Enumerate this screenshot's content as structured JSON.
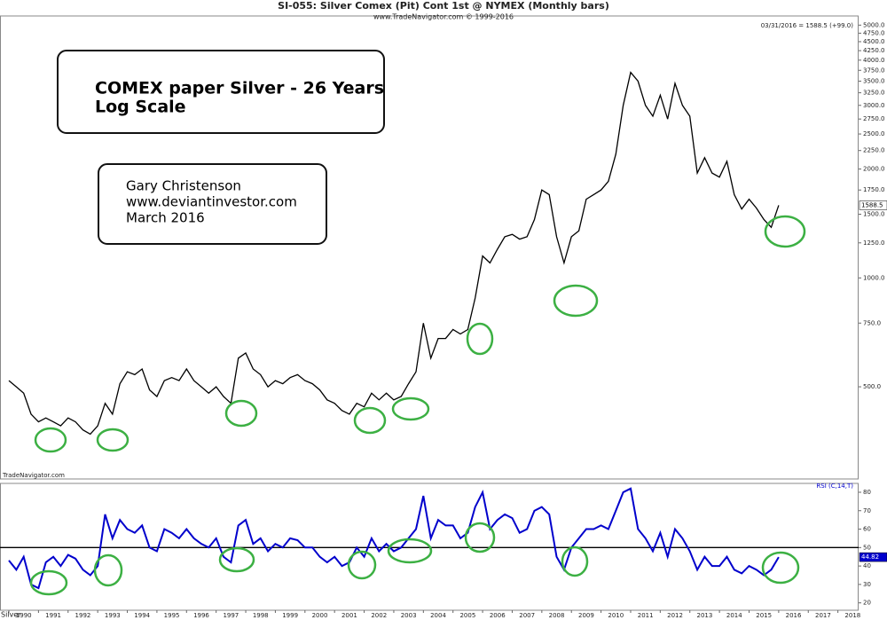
{
  "chart_data": [
    {
      "type": "line",
      "title": "SI-055:  Silver Comex (Pit) Cont 1st @ NYMEX  (Monthly bars)",
      "subtitle": "www.TradeNavigator.com © 1999-2016",
      "last_label": "03/31/2016 = 1588.5 (+99.0)",
      "source": "TradeNavigator.com",
      "annotations": [
        "COMEX paper Silver - 26 Years",
        "Log Scale",
        "Gary Christenson",
        "www.deviantinvestor.com",
        "March 2016"
      ],
      "log_scale": true,
      "x": [
        1990,
        1990.25,
        1990.5,
        1990.75,
        1991,
        1991.25,
        1991.5,
        1991.75,
        1992,
        1992.25,
        1992.5,
        1992.75,
        1993,
        1993.25,
        1993.5,
        1993.75,
        1994,
        1994.25,
        1994.5,
        1994.75,
        1995,
        1995.25,
        1995.5,
        1995.75,
        1996,
        1996.25,
        1996.5,
        1996.75,
        1997,
        1997.25,
        1997.5,
        1997.75,
        1998,
        1998.25,
        1998.5,
        1998.75,
        1999,
        1999.25,
        1999.5,
        1999.75,
        2000,
        2000.25,
        2000.5,
        2000.75,
        2001,
        2001.25,
        2001.5,
        2001.75,
        2002,
        2002.25,
        2002.5,
        2002.75,
        2003,
        2003.25,
        2003.5,
        2003.75,
        2004,
        2004.25,
        2004.5,
        2004.75,
        2005,
        2005.25,
        2005.5,
        2005.75,
        2006,
        2006.25,
        2006.5,
        2006.75,
        2007,
        2007.25,
        2007.5,
        2007.75,
        2008,
        2008.25,
        2008.5,
        2008.75,
        2009,
        2009.25,
        2009.5,
        2009.75,
        2010,
        2010.25,
        2010.5,
        2010.75,
        2011,
        2011.25,
        2011.5,
        2011.75,
        2012,
        2012.25,
        2012.5,
        2012.75,
        2013,
        2013.25,
        2013.5,
        2013.75,
        2014,
        2014.25,
        2014.5,
        2014.75,
        2015,
        2015.25,
        2015.5,
        2015.75,
        2016
      ],
      "series": [
        {
          "name": "Silver",
          "color": "#000000",
          "values": [
            520,
            500,
            480,
            420,
            400,
            410,
            400,
            390,
            410,
            400,
            380,
            370,
            390,
            450,
            420,
            510,
            550,
            540,
            560,
            490,
            470,
            520,
            530,
            520,
            560,
            520,
            500,
            480,
            500,
            470,
            450,
            600,
            620,
            560,
            540,
            500,
            520,
            510,
            530,
            540,
            520,
            510,
            490,
            460,
            450,
            430,
            420,
            450,
            440,
            480,
            460,
            480,
            460,
            470,
            510,
            550,
            750,
            600,
            680,
            680,
            720,
            700,
            720,
            880,
            1150,
            1100,
            1200,
            1300,
            1320,
            1280,
            1300,
            1450,
            1750,
            1700,
            1300,
            1100,
            1300,
            1350,
            1650,
            1700,
            1750,
            1850,
            2200,
            3000,
            3700,
            3500,
            3000,
            2800,
            3200,
            2750,
            3450,
            3000,
            2800,
            1950,
            2150,
            1950,
            1900,
            2100,
            1700,
            1550,
            1650,
            1560,
            1450,
            1380,
            1588.5
          ]
        }
      ],
      "xlim": [
        1989.7,
        2018.7
      ],
      "ylim": [
        278,
        5300
      ],
      "yticks": [
        {
          "value": 500,
          "label": "500.0"
        },
        {
          "value": 750,
          "label": "750.0"
        },
        {
          "value": 1000,
          "label": "1000.0"
        },
        {
          "value": 1250,
          "label": "1250.0"
        },
        {
          "value": 1500,
          "label": "1500.0"
        },
        {
          "value": 1750,
          "label": "1750.0"
        },
        {
          "value": 2000,
          "label": "2000.0"
        },
        {
          "value": 2250,
          "label": "2250.0"
        },
        {
          "value": 2500,
          "label": "2500.0"
        },
        {
          "value": 2750,
          "label": "2750.0"
        },
        {
          "value": 3000,
          "label": "3000.0"
        },
        {
          "value": 3250,
          "label": "3250.0"
        },
        {
          "value": 3500,
          "label": "3500.0"
        },
        {
          "value": 3750,
          "label": "3750.0"
        },
        {
          "value": 4000,
          "label": "4000.0"
        },
        {
          "value": 4250,
          "label": "4250.0"
        },
        {
          "value": 4500,
          "label": "4500.0"
        },
        {
          "value": 4750,
          "label": "4750.0"
        },
        {
          "value": 5000,
          "label": "5000.0"
        }
      ]
    },
    {
      "type": "line",
      "title": "RSI (C,14,T)",
      "x": [
        1990,
        1990.25,
        1990.5,
        1990.75,
        1991,
        1991.25,
        1991.5,
        1991.75,
        1992,
        1992.25,
        1992.5,
        1992.75,
        1993,
        1993.25,
        1993.5,
        1993.75,
        1994,
        1994.25,
        1994.5,
        1994.75,
        1995,
        1995.25,
        1995.5,
        1995.75,
        1996,
        1996.25,
        1996.5,
        1996.75,
        1997,
        1997.25,
        1997.5,
        1997.75,
        1998,
        1998.25,
        1998.5,
        1998.75,
        1999,
        1999.25,
        1999.5,
        1999.75,
        2000,
        2000.25,
        2000.5,
        2000.75,
        2001,
        2001.25,
        2001.5,
        2001.75,
        2002,
        2002.25,
        2002.5,
        2002.75,
        2003,
        2003.25,
        2003.5,
        2003.75,
        2004,
        2004.25,
        2004.5,
        2004.75,
        2005,
        2005.25,
        2005.5,
        2005.75,
        2006,
        2006.25,
        2006.5,
        2006.75,
        2007,
        2007.25,
        2007.5,
        2007.75,
        2008,
        2008.25,
        2008.5,
        2008.75,
        2009,
        2009.25,
        2009.5,
        2009.75,
        2010,
        2010.25,
        2010.5,
        2010.75,
        2011,
        2011.25,
        2011.5,
        2011.75,
        2012,
        2012.25,
        2012.5,
        2012.75,
        2013,
        2013.25,
        2013.5,
        2013.75,
        2014,
        2014.25,
        2014.5,
        2014.75,
        2015,
        2015.25,
        2015.5,
        2015.75,
        2016
      ],
      "color": "#0000cc",
      "values": [
        43,
        38,
        45,
        30,
        28,
        42,
        45,
        40,
        46,
        44,
        38,
        35,
        40,
        68,
        55,
        65,
        60,
        58,
        62,
        50,
        48,
        60,
        58,
        55,
        60,
        55,
        52,
        50,
        55,
        45,
        42,
        62,
        65,
        52,
        55,
        48,
        52,
        50,
        55,
        54,
        50,
        50,
        45,
        42,
        45,
        40,
        42,
        50,
        45,
        55,
        48,
        52,
        48,
        50,
        55,
        60,
        78,
        55,
        65,
        62,
        62,
        55,
        58,
        72,
        80,
        60,
        65,
        68,
        66,
        58,
        60,
        70,
        72,
        68,
        45,
        38,
        50,
        55,
        60,
        60,
        62,
        60,
        70,
        80,
        82,
        60,
        55,
        48,
        58,
        45,
        60,
        55,
        48,
        38,
        45,
        40,
        40,
        45,
        38,
        36,
        40,
        38,
        35,
        38,
        44.82
      ],
      "reference_line": 50,
      "xlim": [
        1989.7,
        2018.7
      ],
      "ylim": [
        16,
        84.8
      ],
      "yticks": [
        20,
        30,
        40,
        50,
        60,
        70,
        80
      ],
      "xticks": [
        {
          "value": 1990,
          "label": "1990"
        },
        {
          "value": 1991,
          "label": "1991"
        },
        {
          "value": 1992,
          "label": "1992"
        },
        {
          "value": 1993,
          "label": "1993"
        },
        {
          "value": 1994,
          "label": "1994"
        },
        {
          "value": 1995,
          "label": "1995"
        },
        {
          "value": 1996,
          "label": "1996"
        },
        {
          "value": 1997,
          "label": "1997"
        },
        {
          "value": 1998,
          "label": "1998"
        },
        {
          "value": 1999,
          "label": "1999"
        },
        {
          "value": 2000,
          "label": "2000"
        },
        {
          "value": 2001,
          "label": "2001"
        },
        {
          "value": 2002,
          "label": "2002"
        },
        {
          "value": 2003,
          "label": "2003"
        },
        {
          "value": 2004,
          "label": "2004"
        },
        {
          "value": 2005,
          "label": "2005"
        },
        {
          "value": 2006,
          "label": "2006"
        },
        {
          "value": 2007,
          "label": "2007"
        },
        {
          "value": 2008,
          "label": "2008"
        },
        {
          "value": 2009,
          "label": "2009"
        },
        {
          "value": 2010,
          "label": "2010"
        },
        {
          "value": 2011,
          "label": "2011"
        },
        {
          "value": 2012,
          "label": "2012"
        },
        {
          "value": 2013,
          "label": "2013"
        },
        {
          "value": 2014,
          "label": "2014"
        },
        {
          "value": 2015,
          "label": "2015"
        },
        {
          "value": 2016,
          "label": "2016"
        },
        {
          "value": 2017,
          "label": "2017"
        },
        {
          "value": 2018,
          "label": "2018"
        }
      ]
    }
  ]
}
